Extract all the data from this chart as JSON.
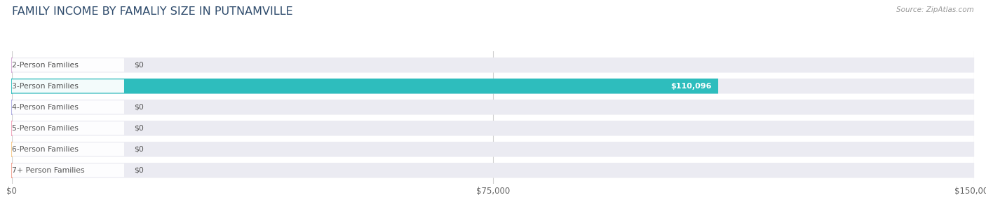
{
  "title": "FAMILY INCOME BY FAMALIY SIZE IN PUTNAMVILLE",
  "source": "Source: ZipAtlas.com",
  "categories": [
    "2-Person Families",
    "3-Person Families",
    "4-Person Families",
    "5-Person Families",
    "6-Person Families",
    "7+ Person Families"
  ],
  "values": [
    0,
    110096,
    0,
    0,
    0,
    0
  ],
  "bar_colors": [
    "#d4a8d4",
    "#2ebdbd",
    "#aaa8e0",
    "#f0a0b8",
    "#f5c888",
    "#f0a090"
  ],
  "background_color": "#ffffff",
  "row_bg_color": "#ebebf2",
  "xlim": [
    0,
    150000
  ],
  "xticks": [
    0,
    75000,
    150000
  ],
  "xtick_labels": [
    "$0",
    "$75,000",
    "$150,000"
  ],
  "title_color": "#2d4a6b",
  "label_color": "#555555",
  "value_label_3person": "$110,096",
  "value_label_zero": "$0",
  "figsize": [
    14.06,
    3.05
  ],
  "dpi": 100
}
